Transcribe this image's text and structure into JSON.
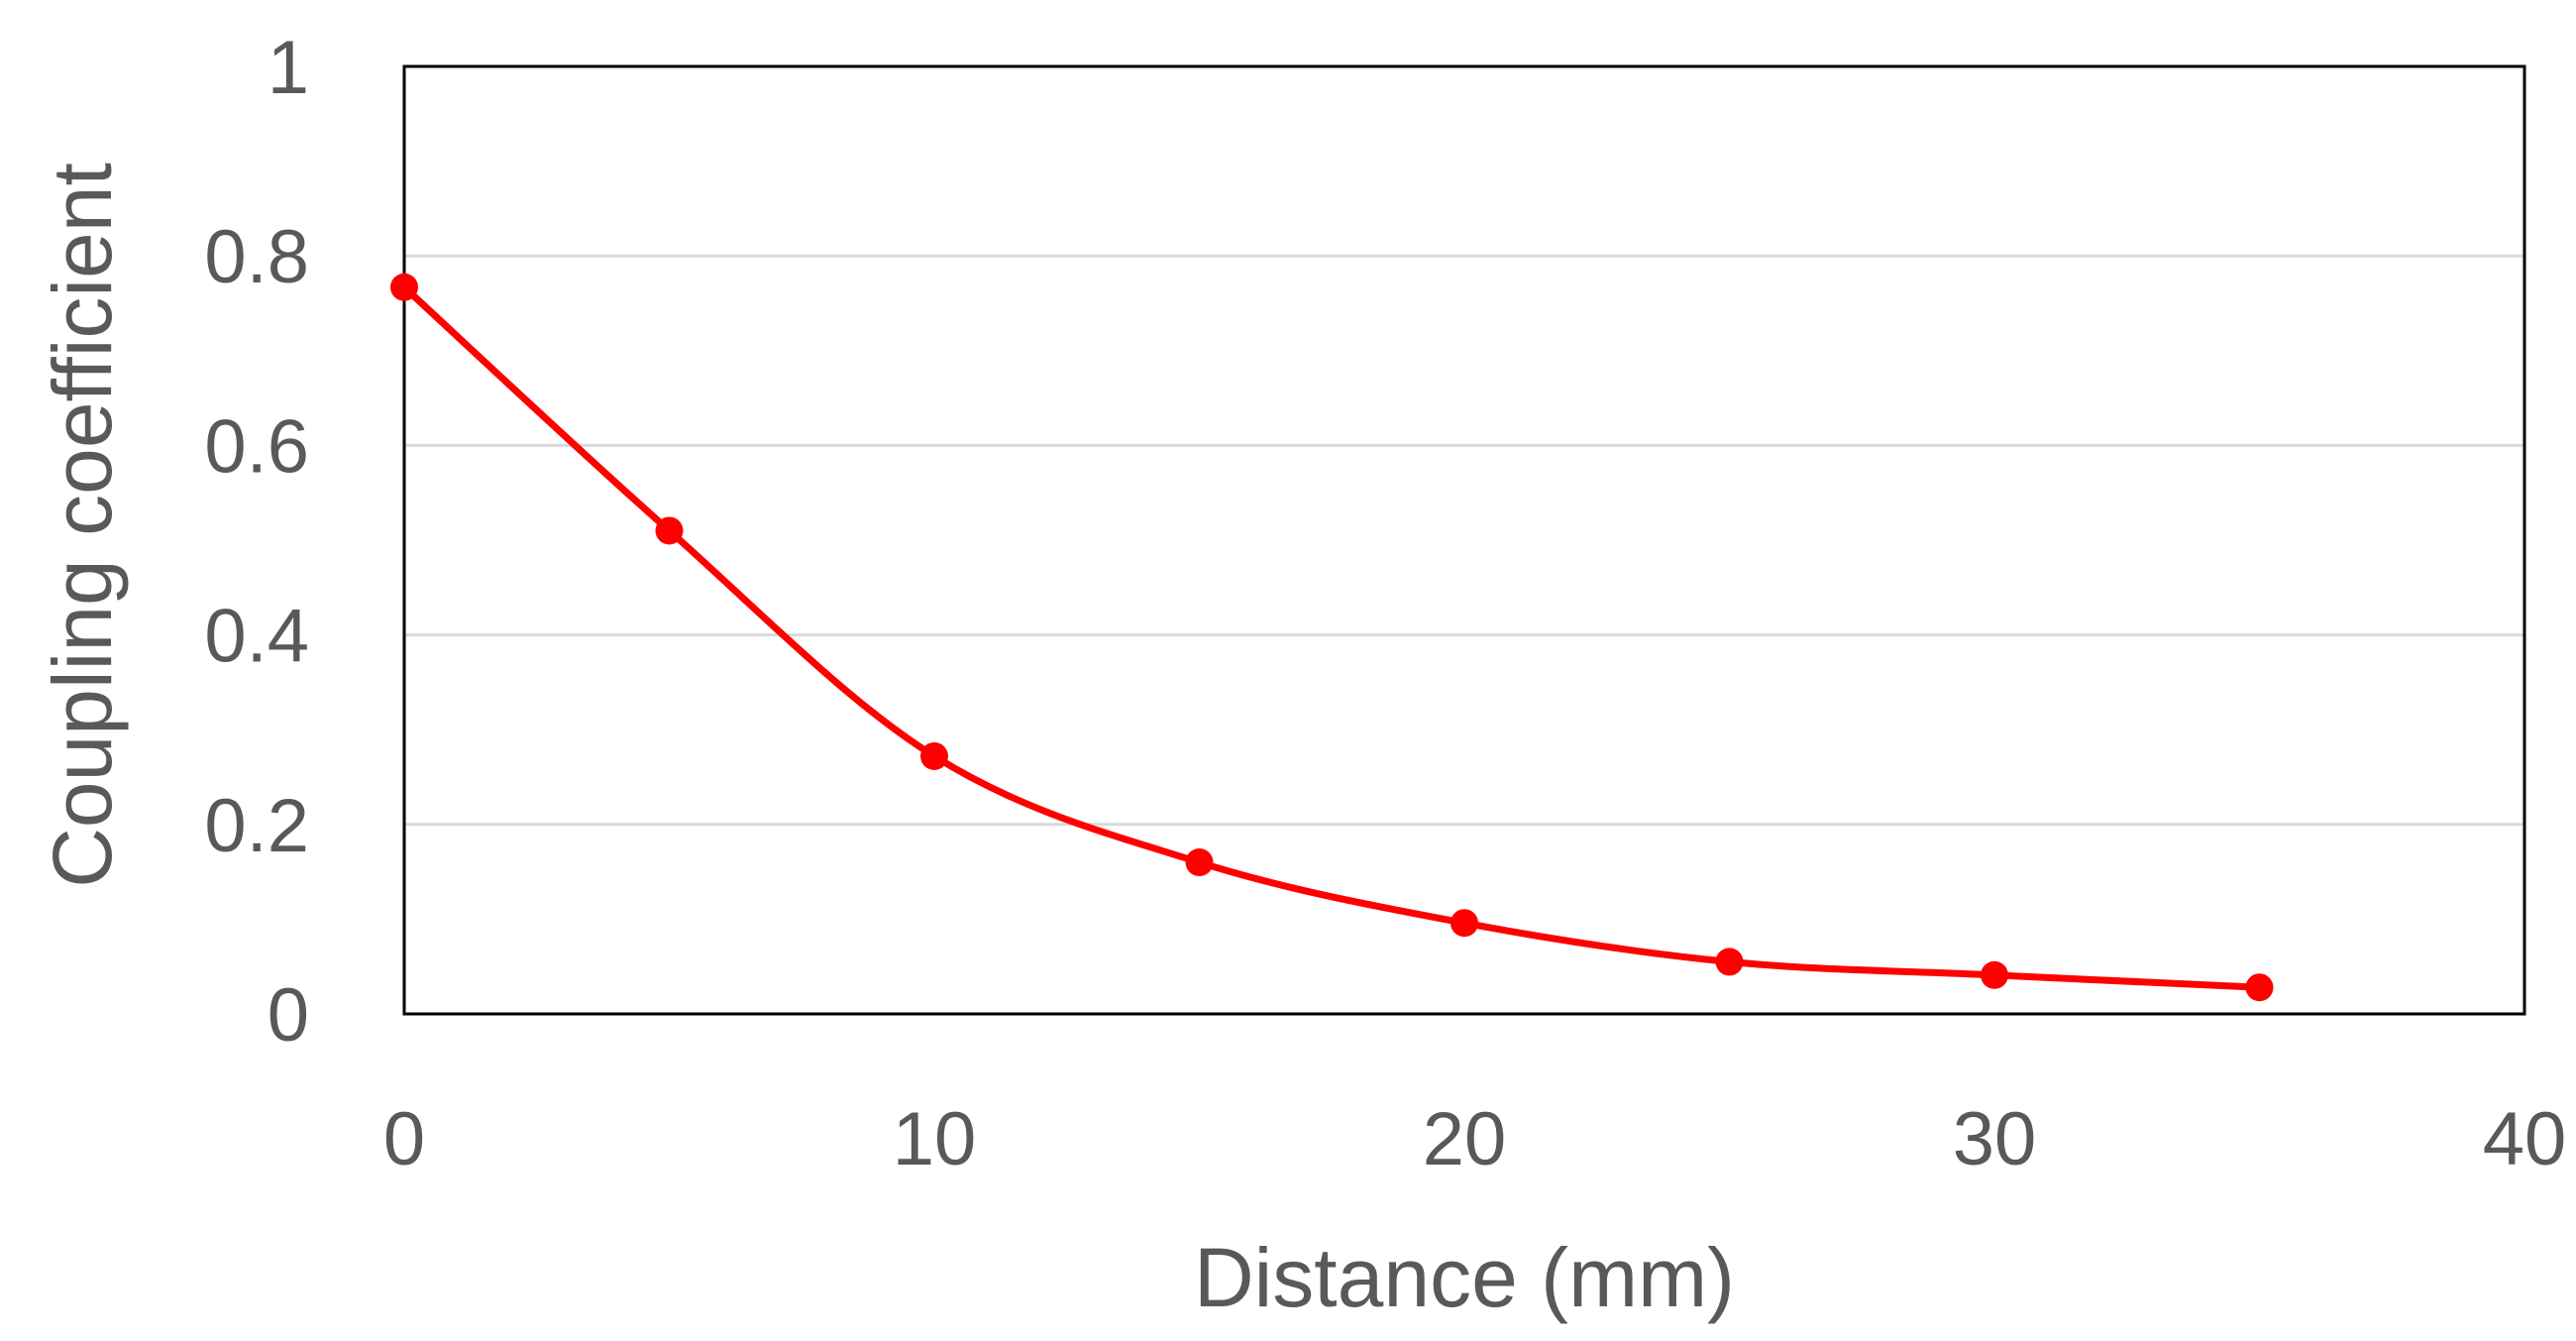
{
  "chart_data": {
    "type": "line",
    "title": "",
    "xlabel": "Distance (mm)",
    "ylabel": "Coupling coefficient",
    "xlim": [
      0,
      40
    ],
    "ylim": [
      0,
      1
    ],
    "x_ticks": [
      0,
      10,
      20,
      30,
      40
    ],
    "y_ticks": [
      0,
      0.2,
      0.4,
      0.6,
      0.8,
      1
    ],
    "x_tick_labels": [
      "0",
      "10",
      "20",
      "30",
      "40"
    ],
    "y_tick_labels": [
      "0",
      "0.2",
      "0.4",
      "0.6",
      "0.8",
      "1"
    ],
    "grid": "horizontal",
    "smooth": true,
    "series": [
      {
        "x": [
          0,
          5,
          10,
          15,
          20,
          25,
          30,
          35
        ],
        "y": [
          0.767,
          0.51,
          0.272,
          0.16,
          0.096,
          0.055,
          0.041,
          0.028
        ],
        "color": "#ff0000",
        "marker": "circle"
      }
    ]
  }
}
